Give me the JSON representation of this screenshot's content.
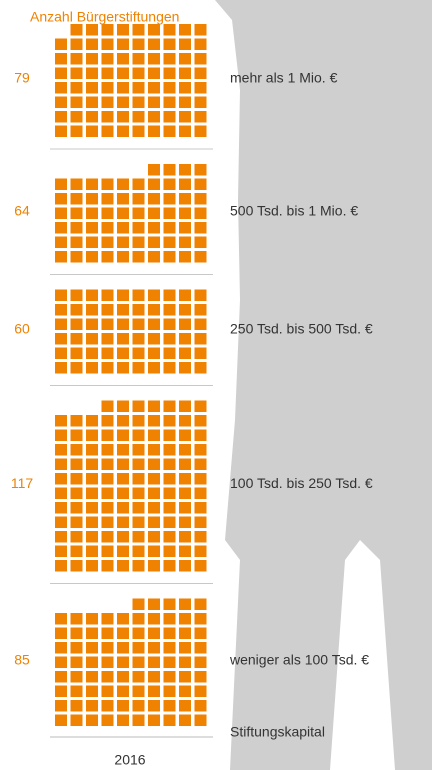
{
  "chart_data": {
    "type": "waffle",
    "title": "Anzahl Bürgerstiftungen",
    "categories": [
      "mehr als 1 Mio. €",
      "500 Tsd. bis 1 Mio. €",
      "250 Tsd. bis 500 Tsd. €",
      "100 Tsd. bis 250 Tsd. €",
      "weniger als 100 Tsd. €"
    ],
    "values": [
      79,
      64,
      60,
      117,
      85
    ],
    "color": "#ef8200",
    "category_axis_title": "Stiftungskapital",
    "x_label": "2016"
  }
}
